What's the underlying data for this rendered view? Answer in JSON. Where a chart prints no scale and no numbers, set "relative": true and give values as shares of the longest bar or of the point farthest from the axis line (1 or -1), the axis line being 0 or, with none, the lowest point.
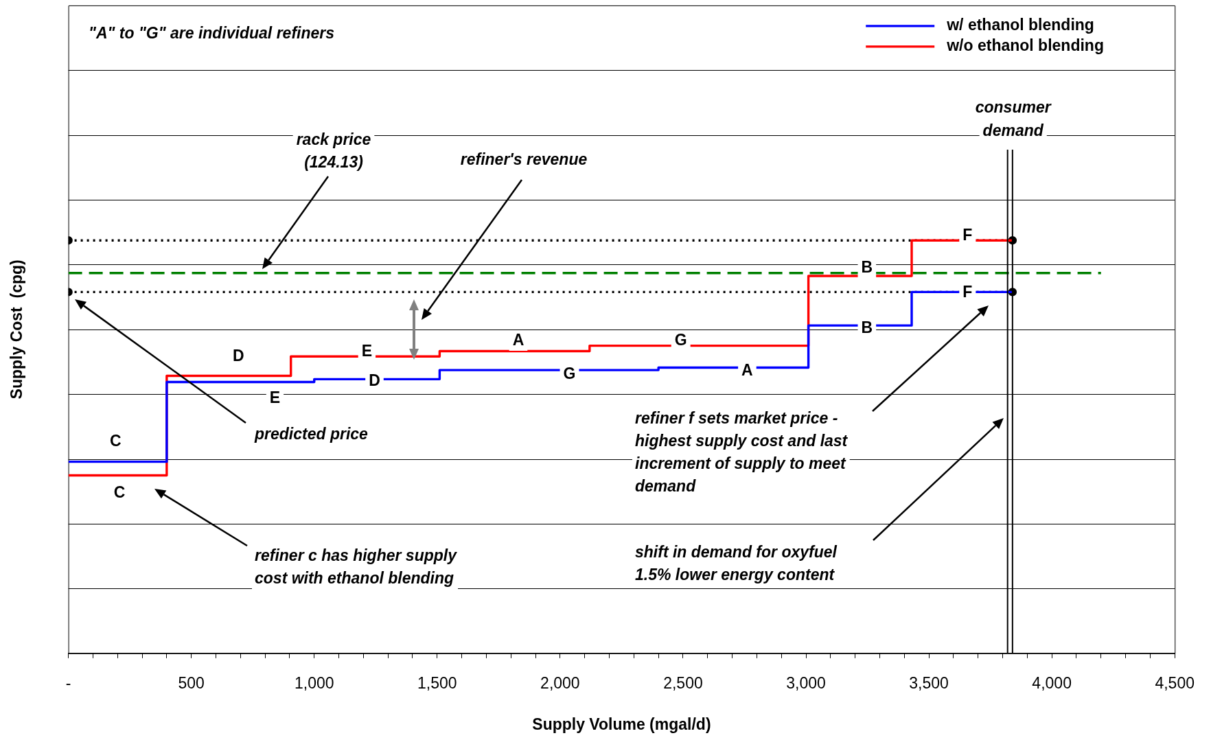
{
  "chart_data": {
    "type": "step",
    "relative": true,
    "xlabel": "Supply Volume (mgal/d)",
    "ylabel": "Supply Cost  (cpg)",
    "xlim": [
      0,
      4500
    ],
    "xticks": [
      {
        "value": 0,
        "label": "-"
      },
      {
        "value": 100,
        "label": null
      },
      {
        "value": 200,
        "label": null
      },
      {
        "value": 300,
        "label": null
      },
      {
        "value": 400,
        "label": null
      },
      500,
      {
        "value": 600,
        "label": null
      },
      {
        "value": 700,
        "label": null
      },
      {
        "value": 800,
        "label": null
      },
      {
        "value": 900,
        "label": null
      },
      {
        "value": 1000,
        "label": "1,000"
      },
      {
        "value": 1100,
        "label": null
      },
      {
        "value": 1200,
        "label": null
      },
      {
        "value": 1300,
        "label": null
      },
      {
        "value": 1400,
        "label": null
      },
      {
        "value": 1500,
        "label": "1,500"
      },
      {
        "value": 1600,
        "label": null
      },
      {
        "value": 1700,
        "label": null
      },
      {
        "value": 1800,
        "label": null
      },
      {
        "value": 1900,
        "label": null
      },
      {
        "value": 2000,
        "label": "2,000"
      },
      {
        "value": 2100,
        "label": null
      },
      {
        "value": 2200,
        "label": null
      },
      {
        "value": 2300,
        "label": null
      },
      {
        "value": 2400,
        "label": null
      },
      {
        "value": 2500,
        "label": "2,500"
      },
      {
        "value": 2600,
        "label": null
      },
      {
        "value": 2700,
        "label": null
      },
      {
        "value": 2800,
        "label": null
      },
      {
        "value": 2900,
        "label": null
      },
      {
        "value": 3000,
        "label": "3,000"
      },
      {
        "value": 3100,
        "label": null
      },
      {
        "value": 3200,
        "label": null
      },
      {
        "value": 3300,
        "label": null
      },
      {
        "value": 3400,
        "label": null
      },
      {
        "value": 3500,
        "label": "3,500"
      },
      {
        "value": 3600,
        "label": null
      },
      {
        "value": 3700,
        "label": null
      },
      {
        "value": 3800,
        "label": null
      },
      {
        "value": 3900,
        "label": null
      },
      {
        "value": 4000,
        "label": "4,000"
      },
      {
        "value": 4100,
        "label": null
      },
      {
        "value": 4200,
        "label": null
      },
      {
        "value": 4300,
        "label": null
      },
      {
        "value": 4400,
        "label": null
      },
      {
        "value": 4500,
        "label": "4,500"
      }
    ],
    "grid": "y",
    "legend": "top right",
    "marker": "none",
    "series": [
      {
        "name": "w/ ethanol blending",
        "type": "step",
        "color": "#0000ff",
        "x": [
          0,
          400,
          1000,
          1510,
          2400,
          3010,
          3430,
          3840
        ],
        "values": [
          0.464,
          0.657,
          0.664,
          0.686,
          0.692,
          0.794,
          0.875,
          0.875
        ]
      },
      {
        "name": "w/o ethanol blending",
        "type": "step",
        "color": "#ff0000",
        "x": [
          0,
          400,
          905,
          1510,
          2120,
          3010,
          3430,
          3840
        ],
        "values": [
          0.431,
          0.672,
          0.719,
          0.732,
          0.745,
          0.914,
          1,
          1
        ]
      },
      {
        "type": "line",
        "color": "#008000",
        "line_style": "dashed",
        "marker": "none",
        "x": [
          0,
          4200
        ],
        "values": [
          0.921,
          0.921
        ]
      },
      {
        "type": "line",
        "color": "#000000",
        "line_style": "dotted",
        "marker": "circle",
        "x": [
          0,
          3840
        ],
        "values": [
          1,
          1
        ]
      },
      {
        "type": "line",
        "color": "#000000",
        "line_style": "dotted",
        "marker": "circle",
        "x": [
          0,
          3840
        ],
        "values": [
          0.875,
          0.875
        ]
      }
    ],
    "ref_lines": [
      {
        "axis": "x",
        "value": 3820,
        "color": "#000000",
        "label": "consumer demand"
      },
      {
        "axis": "x",
        "value": 3840,
        "color": "#000000"
      }
    ],
    "annotations": [
      "\"A\" to \"G\" are individual refiners",
      "rack price (124.13)",
      "refiner's revenue",
      "predicted price",
      "refiner c has higher supply cost with ethanol blending",
      "refiner f sets market price - highest supply cost and last increment of supply to meet demand",
      "shift in demand for oxyfuel 1.5% lower energy content",
      {
        "text": "C",
        "x": 192,
        "y": 0.512
      },
      {
        "text": "C",
        "x": 208,
        "y": 0.387
      },
      {
        "text": "D",
        "x": 692,
        "y": 0.719
      },
      {
        "text": "E",
        "x": 1214,
        "y": 0.73
      },
      {
        "text": "E",
        "x": 840,
        "y": 0.617
      },
      {
        "text": "D",
        "x": 1245,
        "y": 0.659
      },
      {
        "text": "A",
        "x": 1830,
        "y": 0.756
      },
      {
        "text": "G",
        "x": 2491,
        "y": 0.756
      },
      {
        "text": "G",
        "x": 2038,
        "y": 0.675
      },
      {
        "text": "A",
        "x": 2761,
        "y": 0.683
      },
      {
        "text": "B",
        "x": 3248,
        "y": 0.932
      },
      {
        "text": "B",
        "x": 3248,
        "y": 0.787
      },
      {
        "text": "F",
        "x": 3657,
        "y": 1.011
      },
      {
        "text": "F",
        "x": 3657,
        "y": 0.873
      }
    ]
  }
}
